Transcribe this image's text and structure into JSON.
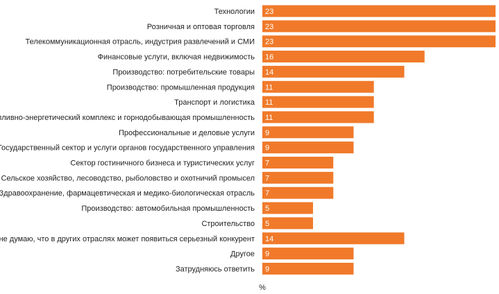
{
  "chart_data": {
    "type": "bar",
    "orientation": "horizontal",
    "categories": [
      "Технологии",
      "Розничная и оптовая торговля",
      "Телекоммуникационная отрасль, индустрия развлечений и СМИ",
      "Финансовые услуги, включая недвижимость",
      "Производство: потребительские товары",
      "Производство: промышленная продукция",
      "Транспорт и логистика",
      "Топливно-энергетический комплекс и горнодобывающая промышленность",
      "Профессиональные и деловые услуги",
      "Государственный сектор и услуги органов государственного управления",
      "Сектор гостиничного бизнеса и туристических услуг",
      "Сельское хозяйство, лесоводство, рыболовство и охотничий промысел",
      "Здравоохранение, фармацевтическая и медико-биологическая отрасль",
      "Производство: автомобильная промышленность",
      "Строительство",
      "Я не думаю, что в других отраслях может появиться серьезный конкурент",
      "Другое",
      "Затрудняюсь ответить"
    ],
    "values": [
      23,
      23,
      23,
      16,
      14,
      11,
      11,
      11,
      9,
      9,
      7,
      7,
      7,
      5,
      5,
      14,
      9,
      9
    ],
    "xlabel": "%",
    "xlim": [
      0,
      23
    ],
    "bar_color": "#f07a2a",
    "value_label_color": "#ffffff",
    "grid": false,
    "legend": "none"
  }
}
